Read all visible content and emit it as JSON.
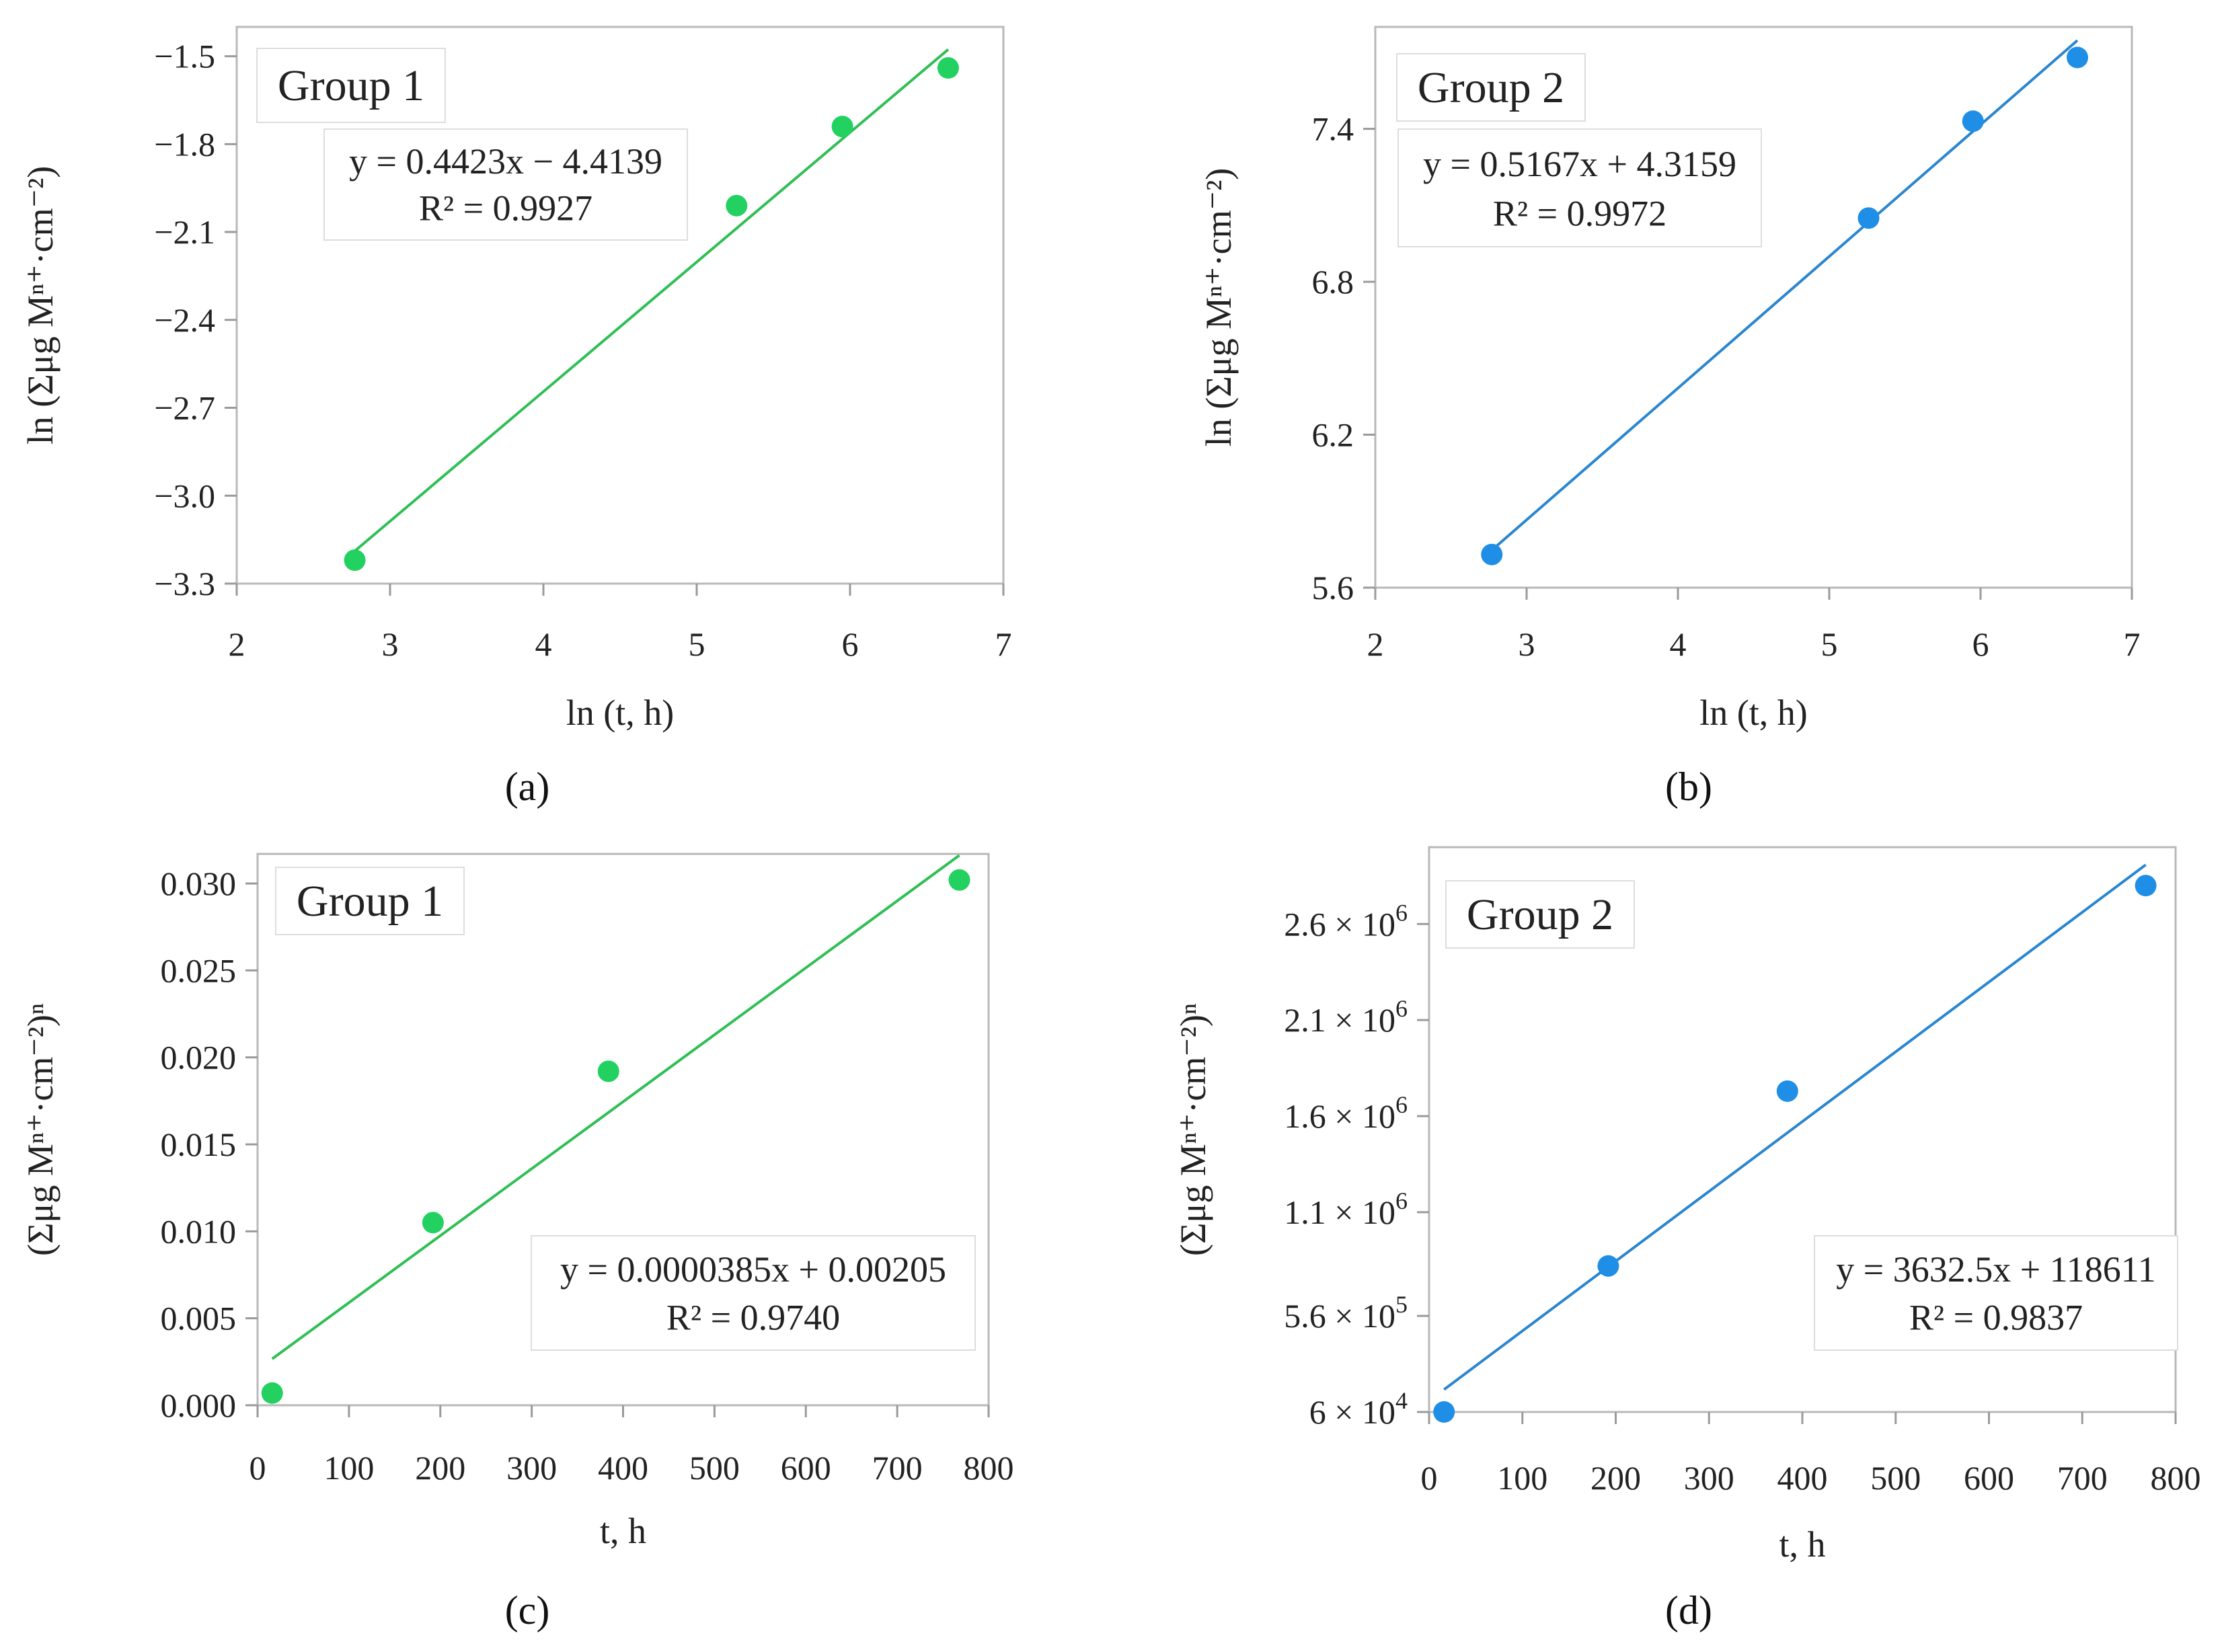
{
  "chart_data": [
    {
      "panel": "a",
      "panel_label": "(a)",
      "type": "scatter",
      "group_label": "Group 1",
      "xlabel": "ln (t, h)",
      "ylabel": "ln (Σμg Mⁿ⁺·cm⁻²)",
      "xlim": [
        2,
        7
      ],
      "ylim": [
        -3.3,
        -1.4
      ],
      "xticks": [
        2,
        3,
        4,
        5,
        6,
        7
      ],
      "yticks": [
        -3.3,
        -3.0,
        -2.7,
        -2.4,
        -2.1,
        -1.8,
        -1.5
      ],
      "x_tick_labels": [
        "2",
        "3",
        "4",
        "5",
        "6",
        "7"
      ],
      "y_tick_labels": [
        "−3.3",
        "−3.0",
        "−2.7",
        "−2.4",
        "−2.1",
        "−1.8",
        "−1.5"
      ],
      "x": [
        2.77,
        5.26,
        5.95,
        6.64
      ],
      "y": [
        -3.22,
        -2.01,
        -1.74,
        -1.54
      ],
      "trendline": {
        "slope": 0.4423,
        "intercept": -4.4139,
        "x_range": [
          2.77,
          6.64
        ]
      },
      "equation": "y = 0.4423x − 4.4139",
      "r_squared": "R² = 0.9927",
      "color": "#22d160",
      "line_color": "#2fbf55"
    },
    {
      "panel": "b",
      "panel_label": "(b)",
      "type": "scatter",
      "group_label": "Group 2",
      "xlabel": "ln (t, h)",
      "ylabel": "ln (Σμg Mⁿ⁺·cm⁻²)",
      "xlim": [
        2,
        7
      ],
      "ylim": [
        5.6,
        7.8
      ],
      "xticks": [
        2,
        3,
        4,
        5,
        6,
        7
      ],
      "yticks": [
        5.6,
        6.2,
        6.8,
        7.4
      ],
      "x_tick_labels": [
        "2",
        "3",
        "4",
        "5",
        "6",
        "7"
      ],
      "y_tick_labels": [
        "5.6",
        "6.2",
        "6.8",
        "7.4"
      ],
      "x": [
        2.77,
        5.26,
        5.95,
        6.64
      ],
      "y": [
        5.73,
        7.05,
        7.43,
        7.68
      ],
      "trendline": {
        "slope": 0.5167,
        "intercept": 4.3159,
        "x_range": [
          2.77,
          6.64
        ]
      },
      "equation": "y = 0.5167x + 4.3159",
      "r_squared": "R² = 0.9972",
      "color": "#1f8ee6",
      "line_color": "#2a86cf"
    },
    {
      "panel": "c",
      "panel_label": "(c)",
      "type": "scatter",
      "group_label": "Group 1",
      "xlabel": "t, h",
      "ylabel": "(Σμg Mⁿ⁺·cm⁻²)ⁿ",
      "xlim": [
        0,
        800
      ],
      "ylim": [
        0,
        0.0317
      ],
      "xticks": [
        0,
        100,
        200,
        300,
        400,
        500,
        600,
        700,
        800
      ],
      "yticks": [
        0,
        0.005,
        0.01,
        0.015,
        0.02,
        0.025,
        0.03
      ],
      "x_tick_labels": [
        "0",
        "100",
        "200",
        "300",
        "400",
        "500",
        "600",
        "700",
        "800"
      ],
      "y_tick_labels": [
        "0.000",
        "0.005",
        "0.010",
        "0.015",
        "0.020",
        "0.025",
        "0.030"
      ],
      "x": [
        16,
        192,
        384,
        768
      ],
      "y": [
        0.0007,
        0.0105,
        0.0192,
        0.0302
      ],
      "trendline": {
        "slope": 3.85e-05,
        "intercept": 0.00205,
        "x_range": [
          16,
          768
        ]
      },
      "equation": "y = 0.0000385x + 0.00205",
      "r_squared": "R² = 0.9740",
      "color": "#22d160",
      "line_color": "#2fbf55"
    },
    {
      "panel": "d",
      "panel_label": "(d)",
      "type": "scatter",
      "group_label": "Group 2",
      "xlabel": "t, h",
      "ylabel": "(Σμg Mⁿ⁺·cm⁻²)ⁿ",
      "xlim": [
        0,
        800
      ],
      "ylim": [
        60000,
        3000000
      ],
      "xticks": [
        0,
        100,
        200,
        300,
        400,
        500,
        600,
        700,
        800
      ],
      "yticks": [
        60000,
        560000,
        1100000,
        1600000,
        2100000,
        2600000
      ],
      "x_tick_labels": [
        "0",
        "100",
        "200",
        "300",
        "400",
        "500",
        "600",
        "700",
        "800"
      ],
      "y_tick_labels": [
        {
          "mant": "6 × 10",
          "exp": "4"
        },
        {
          "mant": "5.6 × 10",
          "exp": "5"
        },
        {
          "mant": "1.1 × 10",
          "exp": "6"
        },
        {
          "mant": "1.6 × 10",
          "exp": "6"
        },
        {
          "mant": "2.1 × 10",
          "exp": "6"
        },
        {
          "mant": "2.6 × 10",
          "exp": "6"
        }
      ],
      "x": [
        16,
        192,
        384,
        768
      ],
      "y": [
        60000,
        820000,
        1730000,
        2800000
      ],
      "trendline": {
        "slope": 3632.5,
        "intercept": 118611,
        "x_range": [
          16,
          768
        ]
      },
      "equation": "y = 3632.5x + 118611",
      "r_squared": "R² = 0.9837",
      "color": "#1f8ee6",
      "line_color": "#2a86cf"
    }
  ]
}
